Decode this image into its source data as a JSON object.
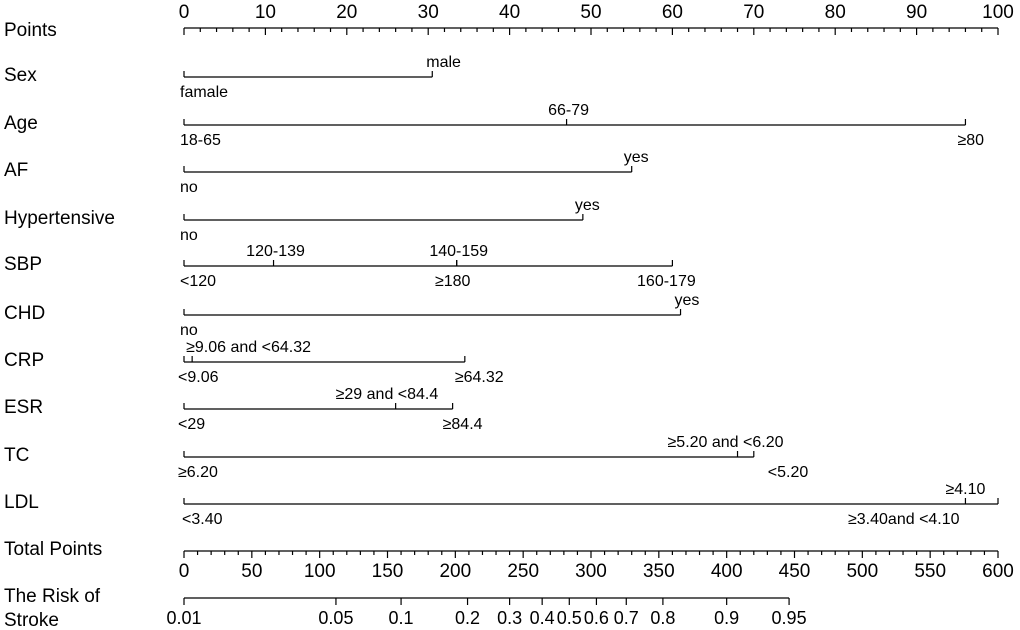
{
  "chart_data": {
    "type": "nomogram",
    "title": "",
    "points_axis": {
      "label": "Points",
      "ticks": [
        0,
        10,
        20,
        30,
        40,
        50,
        60,
        70,
        80,
        90,
        100
      ],
      "minor_step": 2,
      "range": [
        0,
        100
      ]
    },
    "variables": [
      {
        "label": "Sex",
        "levels": [
          {
            "text": "famale",
            "points": 0
          },
          {
            "text": "male",
            "points": 30.5
          }
        ]
      },
      {
        "label": "Age",
        "levels": [
          {
            "text": "18-65",
            "points": 0
          },
          {
            "text": "66-79",
            "points": 47
          },
          {
            "text": "≥80",
            "points": 96
          }
        ]
      },
      {
        "label": "AF",
        "levels": [
          {
            "text": "no",
            "points": 0
          },
          {
            "text": "yes",
            "points": 55
          }
        ]
      },
      {
        "label": "Hypertensive",
        "levels": [
          {
            "text": "no",
            "points": 0
          },
          {
            "text": "yes",
            "points": 49
          }
        ]
      },
      {
        "label": "SBP",
        "levels": [
          {
            "text": "<120",
            "points": 0
          },
          {
            "text": "120-139",
            "points": 11
          },
          {
            "text": "140-159",
            "points": 33.5
          },
          {
            "text": "≥180",
            "points": 33.5
          },
          {
            "text": "160-179",
            "points": 60
          }
        ]
      },
      {
        "label": "CHD",
        "levels": [
          {
            "text": "no",
            "points": 0
          },
          {
            "text": "yes",
            "points": 61
          }
        ]
      },
      {
        "label": "CRP",
        "levels": [
          {
            "text": "<9.06",
            "points": 0
          },
          {
            "text": "≥9.06 and <64.32",
            "points": 1
          },
          {
            "text": "≥64.32",
            "points": 34.5
          }
        ]
      },
      {
        "label": "ESR",
        "levels": [
          {
            "text": "<29",
            "points": 0
          },
          {
            "text": "≥29 and <84.4",
            "points": 26
          },
          {
            "text": "≥84.4",
            "points": 33
          }
        ]
      },
      {
        "label": "TC",
        "levels": [
          {
            "text": "≥6.20",
            "points": 0
          },
          {
            "text": "≥5.20 and <6.20",
            "points": 68
          },
          {
            "text": "<5.20",
            "points": 70
          }
        ]
      },
      {
        "label": "LDL",
        "levels": [
          {
            "text": "<3.40",
            "points": 0
          },
          {
            "text": "≥4.10",
            "points": 96
          },
          {
            "text": "≥3.40and <4.10",
            "points": 100
          }
        ]
      }
    ],
    "total_points_axis": {
      "label": "Total Points",
      "ticks": [
        0,
        50,
        100,
        150,
        200,
        250,
        300,
        350,
        400,
        450,
        500,
        550,
        600
      ],
      "minor_step": 10,
      "range": [
        0,
        600
      ]
    },
    "risk_axis": {
      "label": "The Risk of Stroke",
      "ticks": [
        {
          "text": "0.01",
          "total_points": 0
        },
        {
          "text": "0.05",
          "total_points": 112
        },
        {
          "text": "0.1",
          "total_points": 160
        },
        {
          "text": "0.2",
          "total_points": 209
        },
        {
          "text": "0.3",
          "total_points": 240
        },
        {
          "text": "0.4",
          "total_points": 264
        },
        {
          "text": "0.5",
          "total_points": 284
        },
        {
          "text": "0.6",
          "total_points": 304
        },
        {
          "text": "0.7",
          "total_points": 326
        },
        {
          "text": "0.8",
          "total_points": 353
        },
        {
          "text": "0.9",
          "total_points": 400
        },
        {
          "text": "0.95",
          "total_points": 446
        }
      ]
    }
  }
}
